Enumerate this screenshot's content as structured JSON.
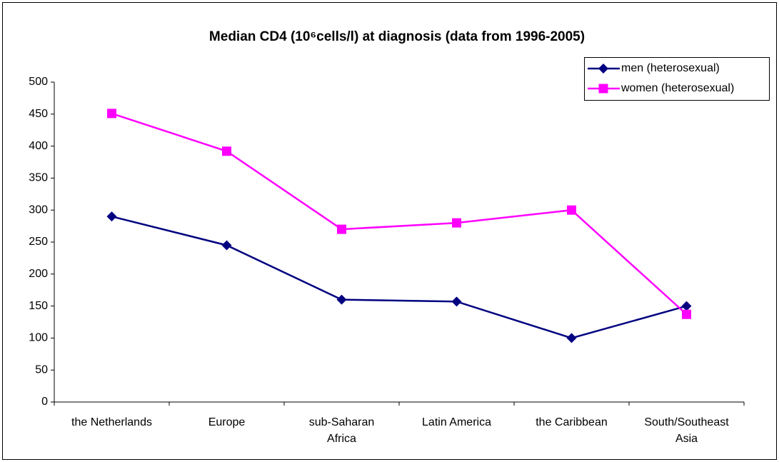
{
  "chart_data": {
    "type": "line",
    "title": "Median CD4 (10⁶cells/l) at diagnosis (data from 1996-2005)",
    "categories": [
      "the Netherlands",
      "Europe",
      "sub-Saharan Africa",
      "Latin America",
      "the Caribbean",
      "South/Southeast Asia"
    ],
    "series": [
      {
        "name": "men (heterosexual)",
        "color": "#000080",
        "marker": "diamond",
        "values": [
          290,
          245,
          160,
          157,
          100,
          150
        ]
      },
      {
        "name": "women (heterosexual)",
        "color": "#ff00ff",
        "marker": "square",
        "values": [
          451,
          392,
          270,
          280,
          300,
          137
        ]
      }
    ],
    "ylim": [
      0,
      500
    ],
    "yticks": [
      0,
      50,
      100,
      150,
      200,
      250,
      300,
      350,
      400,
      450,
      500
    ],
    "grid": false,
    "legend": "upper right"
  }
}
